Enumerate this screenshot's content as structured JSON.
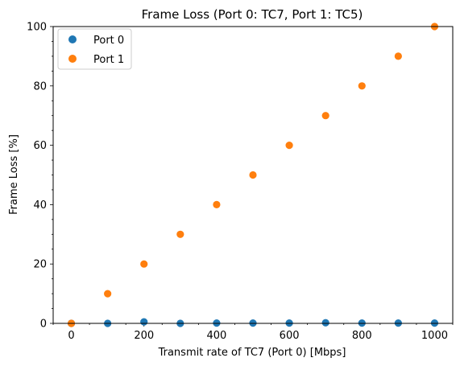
{
  "chart_data": {
    "type": "scatter",
    "title": "Frame Loss (Port 0: TC7, Port 1: TC5)",
    "xlabel": "Transmit rate of TC7 (Port 0) [Mbps]",
    "ylabel": "Frame Loss [%]",
    "xlim": [
      -50,
      1050
    ],
    "ylim": [
      0,
      100
    ],
    "xticks": [
      0,
      200,
      400,
      600,
      800,
      1000
    ],
    "yticks": [
      0,
      20,
      40,
      60,
      80,
      100
    ],
    "x_minor_step": 50,
    "y_minor_step": 5,
    "grid": false,
    "legend_position": "top-left",
    "series": [
      {
        "name": "Port 0",
        "color": "#1f77b4",
        "x": [
          0,
          100,
          200,
          300,
          400,
          500,
          600,
          700,
          800,
          900,
          1000
        ],
        "y": [
          0,
          0,
          0.5,
          0,
          0.1,
          0.1,
          0.1,
          0.2,
          0.1,
          0.1,
          0.1
        ]
      },
      {
        "name": "Port 1",
        "color": "#ff7f0e",
        "x": [
          0,
          100,
          200,
          300,
          400,
          500,
          600,
          700,
          800,
          900,
          1000
        ],
        "y": [
          0,
          10,
          20,
          30,
          40,
          50,
          60,
          70,
          80,
          90,
          100
        ]
      }
    ]
  }
}
